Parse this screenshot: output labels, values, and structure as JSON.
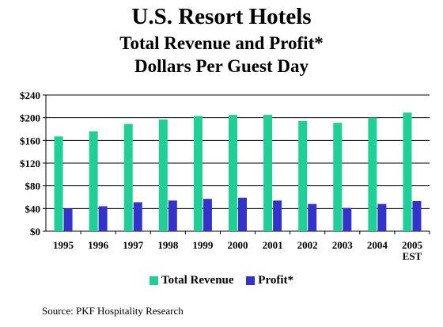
{
  "header": {
    "title": "U.S. Resort Hotels",
    "subtitle1": "Total Revenue and Profit*",
    "subtitle2": "Dollars Per Guest Day"
  },
  "source": "Source: PKF Hospitality Research",
  "chart_data": {
    "type": "bar",
    "categories": [
      "1995",
      "1996",
      "1997",
      "1998",
      "1999",
      "2000",
      "2001",
      "2002",
      "2003",
      "2004",
      "2005\nEST"
    ],
    "series": [
      {
        "name": "Total Revenue",
        "color": "#1fcf96",
        "values": [
          167,
          176,
          189,
          197,
          203,
          205,
          205,
          194,
          191,
          200,
          209
        ]
      },
      {
        "name": "Profit*",
        "color": "#3333cc",
        "values": [
          40,
          44,
          51,
          54,
          57,
          59,
          54,
          48,
          41,
          48,
          53
        ]
      }
    ],
    "ylim": [
      0,
      240
    ],
    "yticks": [
      0,
      40,
      80,
      120,
      160,
      200,
      240
    ],
    "ytick_labels": [
      "$0",
      "$40",
      "$80",
      "$120",
      "$160",
      "$200",
      "$240"
    ],
    "grid": true,
    "legend_position": "bottom"
  }
}
